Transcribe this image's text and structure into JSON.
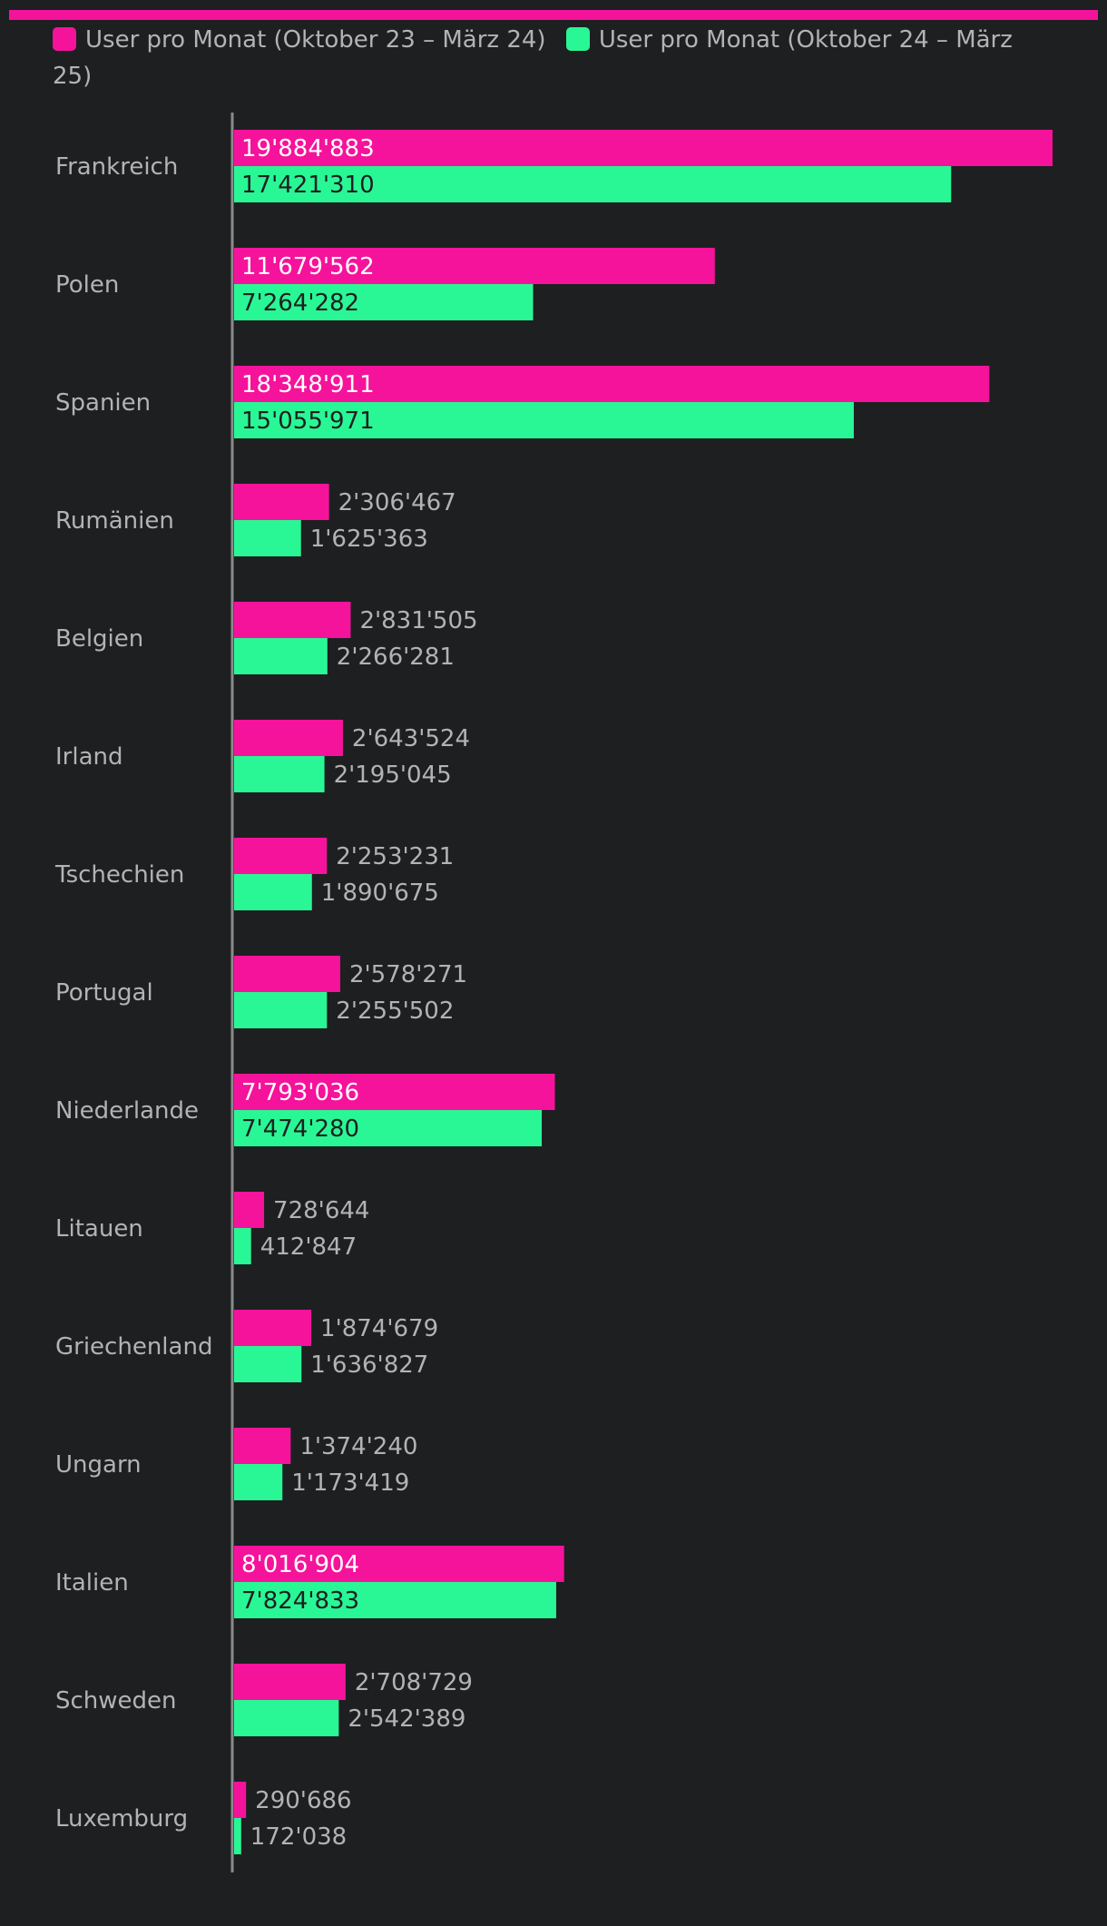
{
  "colors": {
    "background": "#1e1f21",
    "series1": "#f5139b",
    "series2": "#29f795",
    "text": "#b3b3b3",
    "axis": "#8a8a8a"
  },
  "chart_data": {
    "type": "bar",
    "orientation": "horizontal",
    "legend_position": "top",
    "grid": false,
    "categories": [
      "Frankreich",
      "Polen",
      "Spanien",
      "Rumänien",
      "Belgien",
      "Irland",
      "Tschechien",
      "Portugal",
      "Niederlande",
      "Litauen",
      "Griechenland",
      "Ungarn",
      "Italien",
      "Schweden",
      "Luxemburg"
    ],
    "series": [
      {
        "name": "User pro Monat (Oktober 23 – März 24)",
        "values": [
          19884883,
          11679562,
          18348911,
          2306467,
          2831505,
          2643524,
          2253231,
          2578271,
          7793036,
          728644,
          1874679,
          1374240,
          8016904,
          2708729,
          290686
        ],
        "labels": [
          "19'884'883",
          "11'679'562",
          "18'348'911",
          "2'306'467",
          "2'831'505",
          "2'643'524",
          "2'253'231",
          "2'578'271",
          "7'793'036",
          "728'644",
          "1'874'679",
          "1'374'240",
          "8'016'904",
          "2'708'729",
          "290'686"
        ]
      },
      {
        "name": "User pro Monat (Oktober 24 – März 25)",
        "values": [
          17421310,
          7264282,
          15055971,
          1625363,
          2266281,
          2195045,
          1890675,
          2255502,
          7474280,
          412847,
          1636827,
          1173419,
          7824833,
          2542389,
          172038
        ],
        "labels": [
          "17'421'310",
          "7'264'282",
          "15'055'971",
          "1'625'363",
          "2'266'281",
          "2'195'045",
          "1'890'675",
          "2'255'502",
          "7'474'280",
          "412'847",
          "1'636'827",
          "1'173'419",
          "7'824'833",
          "2'542'389",
          "172'038"
        ]
      }
    ]
  }
}
